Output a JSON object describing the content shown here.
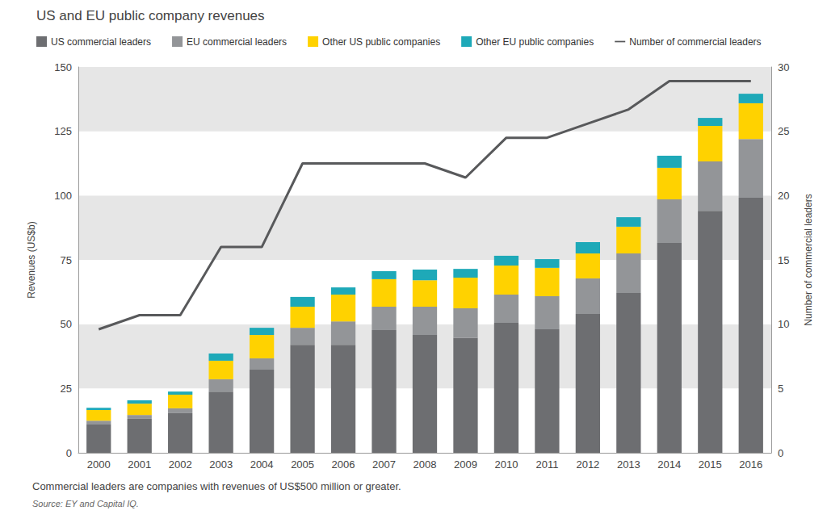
{
  "chart_data": {
    "type": "bar",
    "title": "US and EU public company revenues",
    "y_label": "Revenues (US$b)",
    "y2_label": "Number of commercial leaders",
    "footnote": "Commercial leaders are companies with revenues of US$500 million or greater.",
    "source": "Source: EY and Capital IQ.",
    "categories": [
      "2000",
      "2001",
      "2002",
      "2003",
      "2004",
      "2005",
      "2006",
      "2007",
      "2008",
      "2009",
      "2010",
      "2011",
      "2012",
      "2013",
      "2014",
      "2015",
      "2016"
    ],
    "stacked": true,
    "grid": true,
    "legend": "top",
    "ylim": [
      0,
      150
    ],
    "yticks": [
      0,
      25,
      50,
      75,
      100,
      125,
      150
    ],
    "y2lim": [
      0,
      30
    ],
    "y2ticks": [
      0,
      5,
      10,
      15,
      20,
      25,
      30
    ],
    "series": [
      {
        "name": "US commercial leaders",
        "type": "bar",
        "color": "#6d6e71",
        "values": [
          11,
          13.2,
          15.4,
          23.8,
          32.3,
          42,
          42,
          47.7,
          45.8,
          44.6,
          50.5,
          48,
          54,
          62.1,
          81.6,
          94.1,
          99.2
        ]
      },
      {
        "name": "EU commercial leaders",
        "type": "bar",
        "color": "#939598",
        "values": [
          1.5,
          1.5,
          1.9,
          4.8,
          4.4,
          6.6,
          9.1,
          9.1,
          11,
          11.6,
          11,
          12.9,
          13.8,
          15.4,
          16.9,
          19.2,
          22.8
        ]
      },
      {
        "name": "Other US public companies",
        "type": "bar",
        "color": "#ffd200",
        "values": [
          4.1,
          4.4,
          5.3,
          7.2,
          9.1,
          8.2,
          10.4,
          10.7,
          10.3,
          11.9,
          11.3,
          11,
          9.7,
          10.4,
          12.3,
          13.8,
          13.9
        ]
      },
      {
        "name": "Other EU public companies",
        "type": "bar",
        "color": "#1ea9b8",
        "values": [
          0.9,
          1.3,
          1.2,
          2.8,
          2.8,
          3.8,
          2.8,
          3.1,
          4.1,
          3.4,
          3.8,
          3.4,
          4.4,
          3.7,
          4.7,
          3.1,
          3.7
        ]
      },
      {
        "name": "Number of commercial leaders",
        "type": "line",
        "axis": "y2",
        "color": "#58595b",
        "line_style": "solid",
        "values": [
          9.6,
          10.7,
          10.7,
          16,
          16,
          22.5,
          22.5,
          22.5,
          22.5,
          21.4,
          24.5,
          24.5,
          25.6,
          26.7,
          28.9,
          28.9,
          28.9
        ]
      }
    ]
  }
}
